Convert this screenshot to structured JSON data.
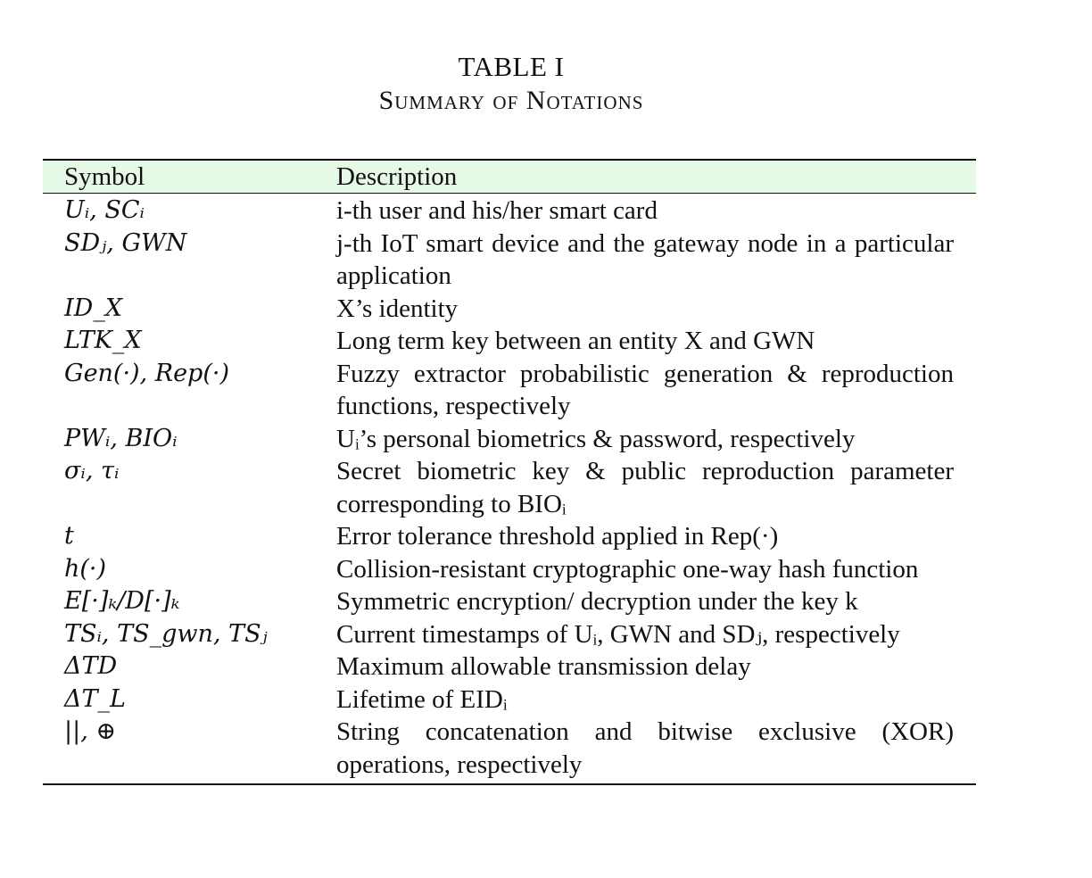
{
  "caption": {
    "label": "TABLE I",
    "title": "Summary of Notations"
  },
  "table": {
    "headers": {
      "symbol": "Symbol",
      "description": "Description"
    },
    "rows": [
      {
        "symbol": "Uᵢ, SCᵢ",
        "description": "i-th user and his/her smart card"
      },
      {
        "symbol": "SDⱼ, GWN",
        "description": "j-th IoT smart device and the gateway node in a particular application"
      },
      {
        "symbol": "ID_X",
        "description": "X’s identity"
      },
      {
        "symbol": "LTK_X",
        "description": "Long term key between an entity X and GWN"
      },
      {
        "symbol": "Gen(·), Rep(·)",
        "description": "Fuzzy extractor probabilistic generation & reproduction functions, respectively"
      },
      {
        "symbol": "PWᵢ, BIOᵢ",
        "description": "Uᵢ’s personal biometrics & password, respectively"
      },
      {
        "symbol": "σᵢ, τᵢ",
        "description": "Secret biometric key & public reproduction parameter corresponding to BIOᵢ"
      },
      {
        "symbol": "t",
        "description": "Error tolerance threshold applied in Rep(·)"
      },
      {
        "symbol": "h(·)",
        "description": "Collision-resistant cryptographic one-way hash function"
      },
      {
        "symbol": "E[·]ₖ/D[·]ₖ",
        "description": "Symmetric encryption/ decryption under the key k"
      },
      {
        "symbol": "TSᵢ, TS_gwn, TSⱼ",
        "description": "Current timestamps of Uᵢ, GWN and SDⱼ, respectively"
      },
      {
        "symbol": "ΔTD",
        "description": "Maximum allowable transmission delay"
      },
      {
        "symbol": "ΔT_L",
        "description": "Lifetime of EIDᵢ"
      },
      {
        "symbol": "||, ⊕",
        "description": "String concatenation and bitwise exclusive (XOR) operations, respectively"
      }
    ]
  }
}
